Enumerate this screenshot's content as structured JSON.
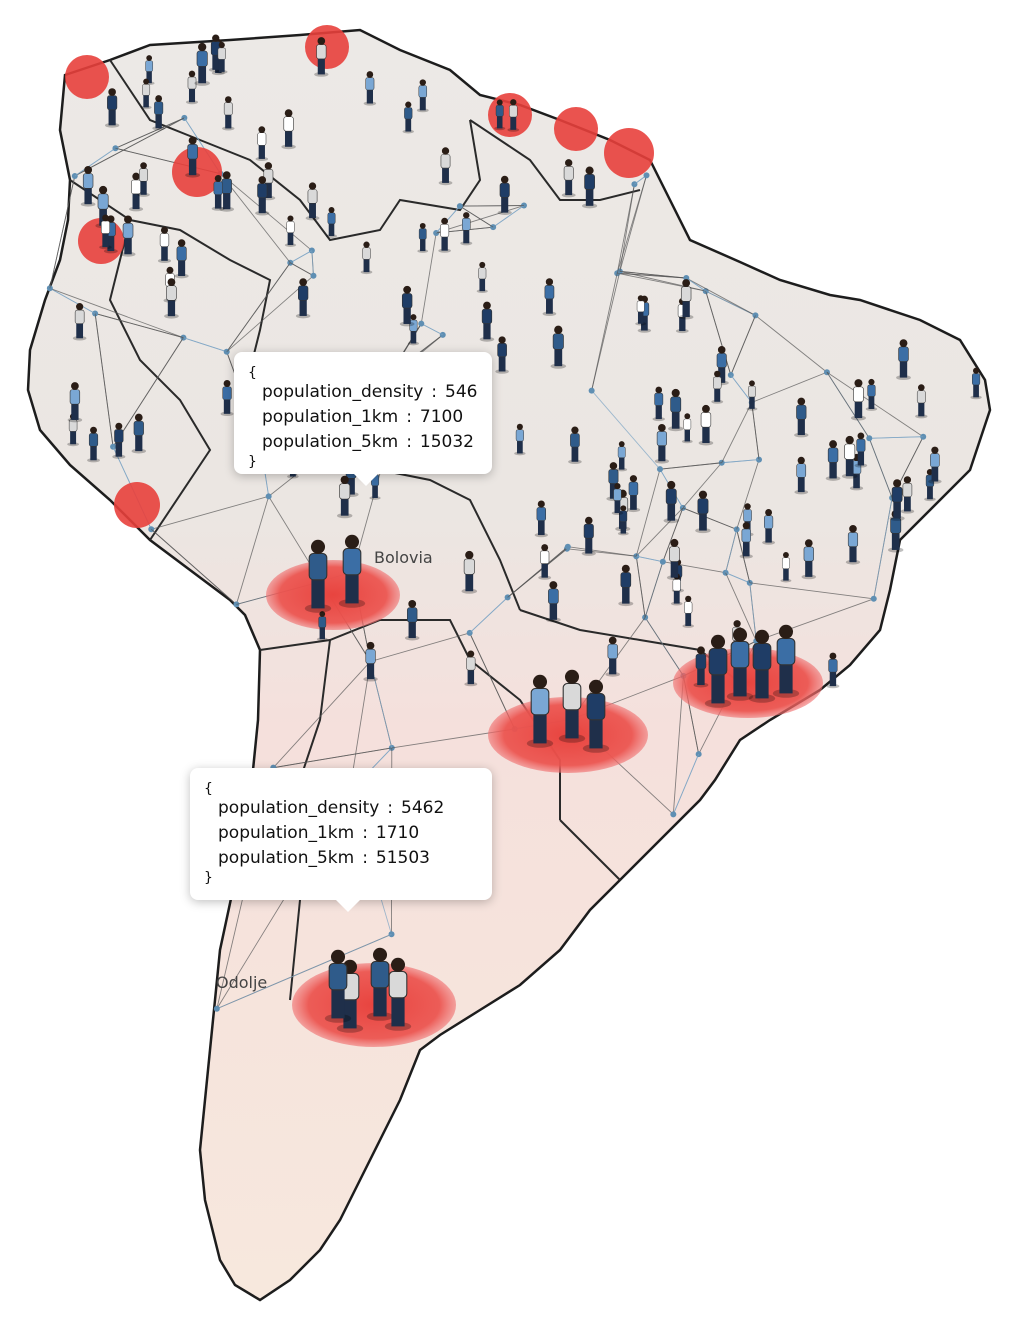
{
  "map": {
    "labels": [
      "Bolovia",
      "Odolje"
    ],
    "tooltips": [
      {
        "open": "{",
        "close": "}",
        "rows": [
          {
            "key": "population_density",
            "separator": ":",
            "value": 546
          },
          {
            "key": "population_1km",
            "separator": ":",
            "value": 7100
          },
          {
            "key": "population_5km",
            "separator": ":",
            "value": 15032
          }
        ]
      },
      {
        "open": "{",
        "close": "}",
        "rows": [
          {
            "key": "population_density",
            "separator": ":",
            "value": 5462
          },
          {
            "key": "population_1km",
            "separator": ":",
            "value": 1710
          },
          {
            "key": "population_5km",
            "separator": ":",
            "value": 51503
          }
        ]
      }
    ]
  }
}
